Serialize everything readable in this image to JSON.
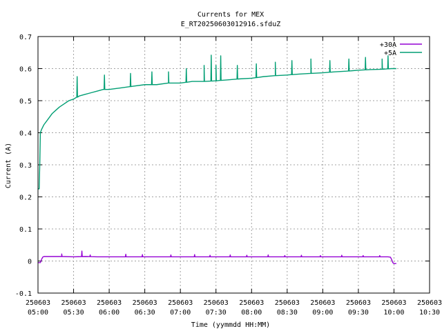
{
  "chart_data": {
    "type": "line",
    "title": "Currents for MEX",
    "subtitle": "E_RT20250603012916.sfduZ",
    "xlabel": "Time (yymmdd HH:MM)",
    "ylabel": "Current (A)",
    "ylim": [
      -0.1,
      0.7
    ],
    "yticks": [
      -0.1,
      0,
      0.1,
      0.2,
      0.3,
      0.4,
      0.5,
      0.6,
      0.7
    ],
    "ytick_labels": [
      "-0.1",
      "0",
      "0.1",
      "0.2",
      "0.3",
      "0.4",
      "0.5",
      "0.6",
      "0.7"
    ],
    "xlim": [
      300,
      630
    ],
    "xticks": [
      {
        "t": 300,
        "date": "250603",
        "time": "05:00"
      },
      {
        "t": 330,
        "date": "250603",
        "time": "05:30"
      },
      {
        "t": 360,
        "date": "250603",
        "time": "06:00"
      },
      {
        "t": 390,
        "date": "250603",
        "time": "06:30"
      },
      {
        "t": 420,
        "date": "250603",
        "time": "07:00"
      },
      {
        "t": 450,
        "date": "250603",
        "time": "07:30"
      },
      {
        "t": 480,
        "date": "250603",
        "time": "08:00"
      },
      {
        "t": 510,
        "date": "250603",
        "time": "08:30"
      },
      {
        "t": 540,
        "date": "250603",
        "time": "09:00"
      },
      {
        "t": 570,
        "date": "250603",
        "time": "09:30"
      },
      {
        "t": 600,
        "date": "250603",
        "time": "10:00"
      },
      {
        "t": 630,
        "date": "250603",
        "time": "10:30"
      }
    ],
    "grid": true,
    "legend_position": "top-right",
    "series": [
      {
        "name": "+30A",
        "color": "#9400d3",
        "x": [
          300,
          301,
          302,
          303,
          304,
          305,
          310,
          318,
          320,
          330,
          340,
          350,
          360,
          370,
          380,
          390,
          400,
          420,
          440,
          460,
          480,
          500,
          520,
          540,
          560,
          580,
          590,
          595,
          597,
          598,
          599,
          600,
          602
        ],
        "y": [
          -0.005,
          -0.005,
          -0.005,
          0.005,
          0.012,
          0.014,
          0.014,
          0.014,
          0.014,
          0.013,
          0.014,
          0.013,
          0.013,
          0.013,
          0.013,
          0.013,
          0.013,
          0.013,
          0.013,
          0.013,
          0.013,
          0.013,
          0.013,
          0.013,
          0.013,
          0.013,
          0.013,
          0.013,
          0.012,
          0.005,
          -0.005,
          -0.008,
          -0.008
        ],
        "spikes": [
          [
            320,
            0.022
          ],
          [
            337,
            0.031
          ],
          [
            344,
            0.019
          ],
          [
            374,
            0.021
          ],
          [
            388,
            0.02
          ],
          [
            412,
            0.019
          ],
          [
            432,
            0.02
          ],
          [
            445,
            0.018
          ],
          [
            462,
            0.019
          ],
          [
            476,
            0.018
          ],
          [
            494,
            0.019
          ],
          [
            508,
            0.017
          ],
          [
            522,
            0.018
          ],
          [
            538,
            0.017
          ],
          [
            556,
            0.018
          ],
          [
            574,
            0.017
          ],
          [
            588,
            0.017
          ]
        ]
      },
      {
        "name": "+5A",
        "color": "#009e73",
        "x": [
          300,
          301,
          301.5,
          302,
          303,
          305,
          308,
          312,
          315,
          318,
          322,
          326,
          330,
          335,
          340,
          345,
          350,
          355,
          360,
          370,
          380,
          390,
          400,
          410,
          420,
          430,
          440,
          450,
          460,
          470,
          480,
          490,
          500,
          510,
          520,
          530,
          540,
          550,
          560,
          570,
          580,
          590,
          598,
          600,
          602
        ],
        "y": [
          0.225,
          0.225,
          0.3,
          0.4,
          0.41,
          0.425,
          0.44,
          0.46,
          0.47,
          0.48,
          0.49,
          0.5,
          0.505,
          0.515,
          0.52,
          0.525,
          0.53,
          0.535,
          0.535,
          0.54,
          0.545,
          0.55,
          0.55,
          0.555,
          0.555,
          0.56,
          0.56,
          0.562,
          0.565,
          0.568,
          0.57,
          0.575,
          0.578,
          0.58,
          0.583,
          0.585,
          0.587,
          0.59,
          0.592,
          0.595,
          0.597,
          0.598,
          0.6,
          0.6,
          0.6
        ],
        "spikes": [
          [
            333,
            0.575
          ],
          [
            356,
            0.58
          ],
          [
            378,
            0.585
          ],
          [
            396,
            0.59
          ],
          [
            410,
            0.59
          ],
          [
            425,
            0.6
          ],
          [
            440,
            0.61
          ],
          [
            446,
            0.642
          ],
          [
            450,
            0.61
          ],
          [
            454,
            0.64
          ],
          [
            468,
            0.61
          ],
          [
            484,
            0.615
          ],
          [
            500,
            0.62
          ],
          [
            514,
            0.625
          ],
          [
            530,
            0.63
          ],
          [
            546,
            0.625
          ],
          [
            562,
            0.63
          ],
          [
            576,
            0.635
          ],
          [
            590,
            0.63
          ],
          [
            595,
            0.64
          ]
        ]
      }
    ]
  }
}
